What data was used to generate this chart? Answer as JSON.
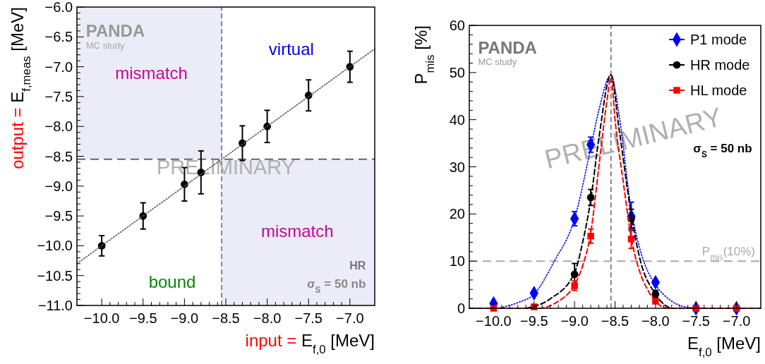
{
  "chart_data": [
    {
      "type": "scatter",
      "xlabel": "input = E$_{f,0}$ [MeV]",
      "ylabel": "output = E$_{f,meas}$ [MeV]",
      "x": [
        -10,
        -9.5,
        -9,
        -8.8,
        -8.3,
        -8,
        -7.5,
        -7
      ],
      "series": [
        {
          "color": "#000000",
          "marker": "circle",
          "values": [
            -10,
            -9.5,
            -8.97,
            -8.77,
            -8.28,
            -8,
            -7.48,
            -7
          ],
          "errors": [
            0.17,
            0.22,
            0.28,
            0.36,
            0.29,
            0.27,
            0.26,
            0.26
          ]
        },
        {
          "type": "line",
          "color": "#555555",
          "marker": "none",
          "line_style": "dotted",
          "x": [
            -10.3,
            -6.7
          ],
          "values": [
            -10.3,
            -6.7
          ]
        }
      ],
      "xlim": [
        -10.3,
        -6.7
      ],
      "xticks": [
        {
          "value": -10,
          "label": "−10.0"
        },
        {
          "value": -9.5,
          "label": "−9.5"
        },
        {
          "value": -9,
          "label": "−9.0"
        },
        {
          "value": -8.5,
          "label": "−8.5"
        },
        {
          "value": -8,
          "label": "−8.0"
        },
        {
          "value": -7.5,
          "label": "−7.5"
        },
        {
          "value": -7,
          "label": "−7.0"
        }
      ],
      "ylim": [
        -11,
        -6
      ],
      "yticks": [
        {
          "value": -11,
          "label": "−11.0"
        },
        {
          "value": -10.5,
          "label": "−10.5"
        },
        {
          "value": -10,
          "label": "−10.0"
        },
        {
          "value": -9.5,
          "label": "−9.5"
        },
        {
          "value": -9,
          "label": "−9.0"
        },
        {
          "value": -8.5,
          "label": "−8.5"
        },
        {
          "value": -8,
          "label": "−8.0"
        },
        {
          "value": -7.5,
          "label": "−7.5"
        },
        {
          "value": -7,
          "label": "−7.0"
        },
        {
          "value": -6.5,
          "label": "−6.5"
        },
        {
          "value": -6,
          "label": "−6.0"
        }
      ],
      "ref_lines": [
        {
          "axis": "x",
          "value": -8.55,
          "color": "#666666",
          "line_style": "dashed"
        },
        {
          "axis": "y",
          "value": -8.55,
          "color": "#666666",
          "line_style": "dashed"
        }
      ],
      "bands": [
        {
          "axis": "x",
          "from": -10.3,
          "to": -8.55,
          "color": "#ececf8"
        },
        {
          "axis": "x",
          "from": -8.55,
          "to": -6.7,
          "color": "#ececf8"
        }
      ],
      "annotations": [
        "mismatch",
        "virtual",
        "mismatch",
        "bound",
        "PANDA",
        "MC study",
        "PRELIMINARY",
        "HR",
        "σ$_{S}$ = 50 nb"
      ],
      "legend": false
    },
    {
      "type": "scatter",
      "xlabel": "E$_{f,0}$ [MeV]",
      "ylabel": "P$_{mis}$ [%]",
      "x": [
        -10,
        -9.5,
        -9,
        -8.8,
        -8.3,
        -8,
        -7.5,
        -7
      ],
      "series": [
        {
          "name": "P1 mode",
          "color": "#0000ff",
          "marker": "diamond",
          "values": [
            1,
            3.2,
            19,
            34.7,
            19.5,
            5.5,
            0,
            0
          ],
          "errors": [
            null,
            null,
            1.5,
            1.6,
            3,
            null,
            null,
            null
          ]
        },
        {
          "name": "HR mode",
          "color": "#000000",
          "marker": "circle",
          "values": [
            null,
            null,
            7.2,
            23.5,
            19,
            3,
            null,
            null
          ],
          "errors": [
            null,
            null,
            2.3,
            1.7,
            2,
            0.8,
            null,
            null
          ]
        },
        {
          "name": "HL mode",
          "color": "#ff0000",
          "marker": "square",
          "values": [
            0,
            0.3,
            4.8,
            15.3,
            14.7,
            1.5,
            0,
            0
          ],
          "errors": [
            null,
            null,
            1,
            1.5,
            2,
            null,
            null,
            null
          ]
        },
        {
          "type": "line",
          "color": "#0000ff",
          "marker": "none",
          "line_style": "dotted",
          "x": [
            -9.95,
            -9.7,
            -9.5,
            -9.25,
            -9,
            -8.8,
            -8.7,
            -8.55,
            -8.45,
            -8.3,
            -8.2,
            -8.1,
            -8,
            -7.8,
            -7.6,
            -7.4
          ],
          "values": [
            0,
            1.2,
            3,
            10,
            19,
            34,
            42,
            49.5,
            41,
            21,
            13,
            8,
            5,
            1.5,
            0.2,
            0
          ]
        },
        {
          "type": "line",
          "color": "#000000",
          "marker": "none",
          "line_style": "dashed",
          "x": [
            -9.6,
            -9.3,
            -9,
            -8.9,
            -8.8,
            -8.7,
            -8.55,
            -8.45,
            -8.3,
            -8.2,
            -8,
            -7.85,
            -7.8
          ],
          "values": [
            0,
            2,
            7.5,
            14,
            23,
            36,
            49.5,
            38,
            20,
            11,
            3,
            0.3,
            0
          ]
        },
        {
          "type": "line",
          "color": "#ff0000",
          "marker": "none",
          "line_style": "dashed",
          "x": [
            -10.3,
            -9.45,
            -9.2,
            -9,
            -8.9,
            -8.8,
            -8.7,
            -8.6,
            -8.55,
            -8.5,
            -8.4,
            -8.3,
            -8.2,
            -8.1,
            -8,
            -7.9,
            -7.8,
            -6.7
          ],
          "values": [
            0,
            0,
            1.5,
            5,
            9,
            16,
            30,
            44,
            49,
            40,
            27,
            15,
            8,
            4,
            1.5,
            0.2,
            0,
            0
          ]
        }
      ],
      "xlim": [
        -10.3,
        -6.7
      ],
      "xticks": [
        {
          "value": -10,
          "label": "−10.0"
        },
        {
          "value": -9.5,
          "label": "−9.5"
        },
        {
          "value": -9,
          "label": "−9.0"
        },
        {
          "value": -8.5,
          "label": "−8.5"
        },
        {
          "value": -8,
          "label": "−8.0"
        },
        {
          "value": -7.5,
          "label": "−7.5"
        },
        {
          "value": -7,
          "label": "−7.0"
        }
      ],
      "ylim": [
        0,
        60
      ],
      "yticks": [
        0,
        10,
        20,
        30,
        40,
        50,
        60
      ],
      "ref_lines": [
        {
          "axis": "x",
          "value": -8.55,
          "color": "#666666",
          "line_style": "dashed"
        },
        {
          "axis": "y",
          "value": 10,
          "label": "P$_{mis}$(10%)",
          "color": "#aaaaaa",
          "line_style": "dashed"
        }
      ],
      "annotations": [
        "PANDA",
        "MC study",
        "PRELIMINARY",
        "σ$_{S}$ = 50 nb"
      ],
      "legend": "top right"
    }
  ]
}
